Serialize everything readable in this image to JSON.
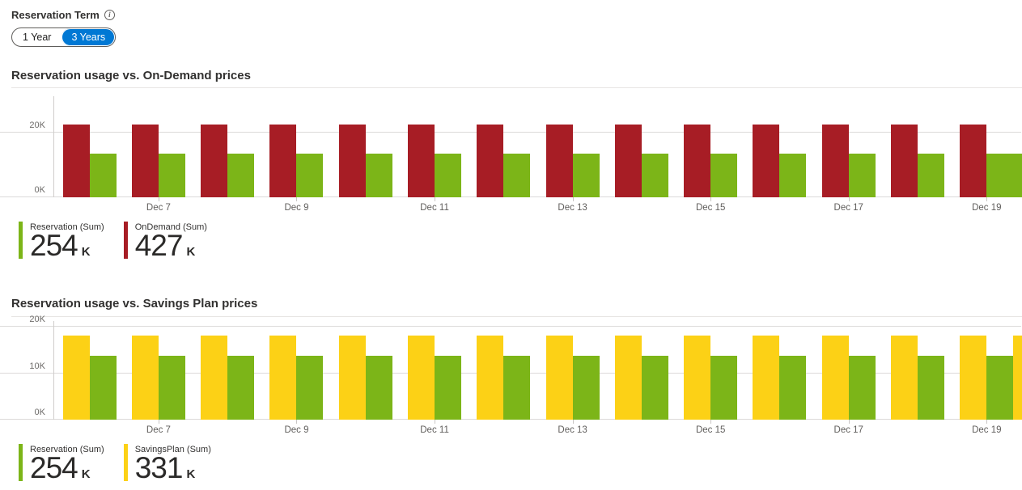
{
  "header": {
    "label": "Reservation Term",
    "info_icon": "i",
    "toggle": {
      "options": [
        "1 Year",
        "3 Years"
      ],
      "selected": "3 Years"
    }
  },
  "colors": {
    "accent_blue": "#0078d4",
    "reservation_green": "#7cb518",
    "ondemand_red": "#a71d25",
    "savingsplan_yellow": "#fcd116",
    "gridline_gray": "#dcdad9"
  },
  "chart_data": [
    {
      "type": "bar",
      "title": "Reservation usage vs. On-Demand prices",
      "categories": [
        "",
        "Dec 7",
        "",
        "Dec 9",
        "",
        "Dec 11",
        "",
        "Dec 13",
        "",
        "Dec 15",
        "",
        "Dec 17",
        "",
        "Dec 19"
      ],
      "series": [
        {
          "name": "OnDemand",
          "color": "#a71d25",
          "values": [
            22.5,
            22.5,
            22.5,
            22.5,
            22.5,
            22.5,
            22.5,
            22.5,
            22.5,
            22.5,
            22.5,
            22.5,
            22.5,
            22.5
          ]
        },
        {
          "name": "Reservation",
          "color": "#7cb518",
          "values": [
            13.5,
            13.5,
            13.5,
            13.5,
            13.5,
            13.5,
            13.5,
            13.5,
            13.5,
            13.5,
            13.5,
            13.5,
            13.5,
            13.5
          ]
        }
      ],
      "unit": "K",
      "ylim": [
        0,
        31.25
      ],
      "grid": true,
      "y_ticks": [
        {
          "value": 0,
          "label": "0K"
        },
        {
          "value": 20,
          "label": "20K"
        }
      ],
      "right_edge_partial_bar": {
        "color": "#7cb518",
        "value": 13.5
      },
      "legend_position": "bottom-left",
      "legend": [
        {
          "label": "Reservation (Sum)",
          "value": "254",
          "unit": "K",
          "color": "#7cb518"
        },
        {
          "label": "OnDemand (Sum)",
          "value": "427",
          "unit": "K",
          "color": "#a71d25"
        }
      ]
    },
    {
      "type": "bar",
      "title": "Reservation usage vs. Savings Plan prices",
      "categories": [
        "",
        "Dec 7",
        "",
        "Dec 9",
        "",
        "Dec 11",
        "",
        "Dec 13",
        "",
        "Dec 15",
        "",
        "Dec 17",
        "",
        "Dec 19"
      ],
      "series": [
        {
          "name": "SavingsPlan",
          "color": "#fcd116",
          "values": [
            18,
            18,
            18,
            18,
            18,
            18,
            18,
            18,
            18,
            18,
            18,
            18,
            18,
            18
          ]
        },
        {
          "name": "Reservation",
          "color": "#7cb518",
          "values": [
            13.7,
            13.7,
            13.7,
            13.7,
            13.7,
            13.7,
            13.7,
            13.7,
            13.7,
            13.7,
            13.7,
            13.7,
            13.7,
            13.7
          ]
        }
      ],
      "unit": "K",
      "ylim": [
        0,
        21.2
      ],
      "grid": true,
      "y_ticks": [
        {
          "value": 0,
          "label": "0K"
        },
        {
          "value": 10,
          "label": "10K"
        },
        {
          "value": 20,
          "label": "20K"
        }
      ],
      "right_edge_partial_bar": {
        "color": "#fcd116",
        "value": 18
      },
      "legend_position": "bottom-left",
      "legend": [
        {
          "label": "Reservation (Sum)",
          "value": "254",
          "unit": "K",
          "color": "#7cb518"
        },
        {
          "label": "SavingsPlan (Sum)",
          "value": "331",
          "unit": "K",
          "color": "#fcd116"
        }
      ]
    }
  ]
}
